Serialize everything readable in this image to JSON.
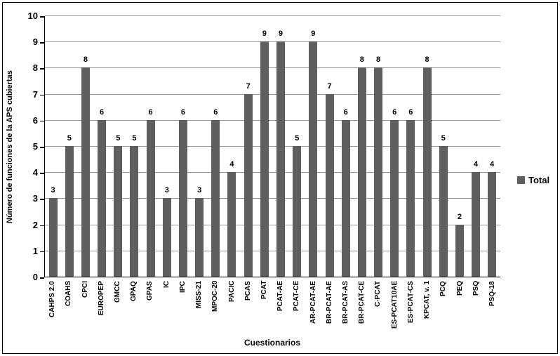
{
  "chart_data": {
    "type": "bar",
    "title": "",
    "categories": [
      "CAHPS 2.0",
      "COAHS",
      "CPCI",
      "EUROPEP",
      "GMCC",
      "GPAQ",
      "GPAS",
      "IC",
      "IPC",
      "MISS-21",
      "MPOC-20",
      "PACIC",
      "PCAS",
      "PCAT",
      "PCAT-AE",
      "PCAT-CE",
      "AR-PCAT-AE",
      "BR-PCAT-AE",
      "BR-PCAT-AS",
      "BR-PCAT-CE",
      "C-PCAT",
      "ES-PCAT10AE",
      "ES-PCAT-CS",
      "KPCAT, v. 1",
      "PCQ",
      "PEQ",
      "PSQ",
      "PSQ-18"
    ],
    "values": [
      3,
      5,
      8,
      6,
      5,
      5,
      6,
      3,
      6,
      3,
      6,
      4,
      7,
      9,
      9,
      5,
      9,
      7,
      6,
      8,
      8,
      6,
      6,
      8,
      5,
      2,
      4,
      4
    ],
    "xlabel": "Cuestionarios",
    "ylabel": "Número de funciones de la APS cubiertas",
    "ylim": [
      0,
      10
    ],
    "ytick_step": 1,
    "yticks": [
      0,
      1,
      2,
      3,
      4,
      5,
      6,
      7,
      8,
      9,
      10
    ],
    "grid": "horizontal",
    "data_labels": true,
    "legend": {
      "position": "right",
      "entries": [
        {
          "label": "Total",
          "color": "#5F5F5F"
        }
      ]
    },
    "colors": {
      "bar": "#5F5F5F",
      "gridline": "#999999",
      "axis": "#000000",
      "text": "#000000",
      "background": "#FFFFFF"
    }
  }
}
